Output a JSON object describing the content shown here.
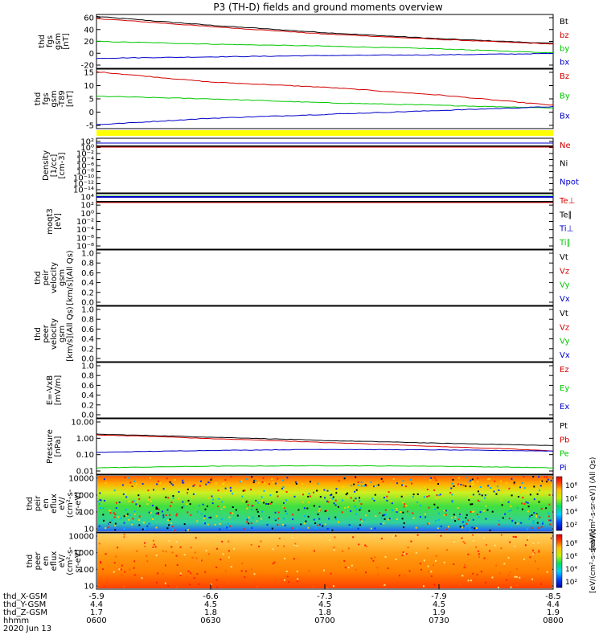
{
  "title": "P3 (TH-D) fields and ground moments overview",
  "colors": {
    "black": "#000000",
    "red": "#d40000",
    "green": "#00c800",
    "blue": "#0000c8",
    "yellow": "#ffff00"
  },
  "chart_data": [
    {
      "id": "fgs",
      "type": "line",
      "ylabel": [
        "thd",
        "fgs",
        "gsm",
        "[nT]"
      ],
      "yticks": [
        "60",
        "40",
        "20",
        "0",
        "-20"
      ],
      "ylim": [
        -20,
        60
      ],
      "x_time": [
        "0600",
        "0630",
        "0700",
        "0730",
        "0800"
      ],
      "series": [
        {
          "name": "Bt",
          "color": "black",
          "x": [
            0,
            0.25,
            0.5,
            0.75,
            1
          ],
          "y": [
            57,
            44,
            33,
            24,
            17
          ]
        },
        {
          "name": "bz",
          "color": "red",
          "x": [
            0,
            0.25,
            0.5,
            0.75,
            1
          ],
          "y": [
            54,
            42,
            31,
            23,
            16
          ]
        },
        {
          "name": "by",
          "color": "green",
          "x": [
            0,
            0.25,
            0.5,
            0.75,
            1
          ],
          "y": [
            20,
            16,
            13,
            9,
            3
          ]
        },
        {
          "name": "bx",
          "color": "blue",
          "x": [
            0,
            0.25,
            0.5,
            0.75,
            1
          ],
          "y": [
            -5,
            -3,
            -1,
            0,
            2
          ]
        }
      ]
    },
    {
      "id": "fgs-ssl",
      "type": "line",
      "ylabel": [
        "thd",
        "fgs",
        "gsm",
        "-T89",
        "[nT]"
      ],
      "yticks": [
        "15",
        "10",
        "5",
        "0",
        "-5"
      ],
      "ylim": [
        -7,
        16
      ],
      "x_time": [
        "0600",
        "0630",
        "0700",
        "0730",
        "0800"
      ],
      "series": [
        {
          "name": "Bz",
          "color": "red",
          "x": [
            0,
            0.25,
            0.5,
            0.75,
            1
          ],
          "y": [
            15,
            11,
            9,
            6,
            2
          ]
        },
        {
          "name": "By",
          "color": "green",
          "x": [
            0,
            0.25,
            0.5,
            0.75,
            1
          ],
          "y": [
            5.5,
            4.5,
            3,
            2,
            1
          ]
        },
        {
          "name": "Bx",
          "color": "blue",
          "x": [
            0,
            0.25,
            0.5,
            0.75,
            1
          ],
          "y": [
            -5.5,
            -3,
            -1.5,
            0,
            1.5
          ]
        }
      ]
    },
    {
      "id": "density",
      "type": "line",
      "ylabel": [
        "Density",
        "[1/cc]",
        "[cm-3]"
      ],
      "yticks": [
        "10²",
        "10⁰",
        "10⁻²",
        "10⁻⁴",
        "10⁻⁶",
        "10⁻⁸",
        "10⁻¹⁰",
        "10⁻¹²",
        "10⁻¹⁴"
      ],
      "log": true,
      "series_labels": [
        {
          "name": "Ne",
          "color": "red"
        },
        {
          "name": "Ni",
          "color": "black"
        },
        {
          "name": "Npot",
          "color": "blue"
        }
      ]
    },
    {
      "id": "temperature",
      "type": "line",
      "ylabel": [
        "moqt3",
        "[eV]"
      ],
      "yticks": [
        "10⁴",
        "10²",
        "10⁰",
        "10⁻²",
        "10⁻⁴",
        "10⁻⁶",
        "10⁻⁸"
      ],
      "log": true,
      "series_labels": [
        {
          "name": "Te⊥",
          "color": "red"
        },
        {
          "name": "Te∥",
          "color": "black"
        },
        {
          "name": "Ti⊥",
          "color": "blue"
        },
        {
          "name": "Ti∥",
          "color": "green"
        }
      ]
    },
    {
      "id": "peir-velocity",
      "type": "line",
      "ylabel": [
        "thd",
        "peir",
        "velocity",
        "gsm",
        "[km/s](All Qs)"
      ],
      "yticks": [
        "1.0",
        "0.8",
        "0.6",
        "0.4",
        "0.2",
        "0.0"
      ],
      "ylim": [
        0,
        1
      ],
      "series_labels": [
        {
          "name": "Vt",
          "color": "black"
        },
        {
          "name": "Vz",
          "color": "red"
        },
        {
          "name": "Vy",
          "color": "green"
        },
        {
          "name": "Vx",
          "color": "blue"
        }
      ]
    },
    {
      "id": "peer-velocity",
      "type": "line",
      "ylabel": [
        "thd",
        "peer",
        "velocity",
        "gsm",
        "[km/s](All Qs)"
      ],
      "yticks": [
        "1.0",
        "0.8",
        "0.6",
        "0.4",
        "0.2",
        "0.0"
      ],
      "ylim": [
        0,
        1
      ],
      "series_labels": [
        {
          "name": "Vt",
          "color": "black"
        },
        {
          "name": "Vz",
          "color": "red"
        },
        {
          "name": "Vy",
          "color": "green"
        },
        {
          "name": "Vx",
          "color": "blue"
        }
      ]
    },
    {
      "id": "e-field",
      "type": "line",
      "ylabel": [
        "E=-VxB",
        "[mV/m]"
      ],
      "yticks": [
        "1.0",
        "0.8",
        "0.6",
        "0.4",
        "0.2",
        "0.0"
      ],
      "ylim": [
        0,
        1
      ],
      "series_labels": [
        {
          "name": "Ez",
          "color": "red"
        },
        {
          "name": "Ey",
          "color": "green"
        },
        {
          "name": "Ex",
          "color": "blue"
        }
      ]
    },
    {
      "id": "pressure",
      "type": "line",
      "ylabel": [
        "Pressure",
        "[nPa]"
      ],
      "yticks": [
        "10.00",
        "1.00",
        "0.10",
        "0.01"
      ],
      "log": true,
      "ylim": [
        0.005,
        10
      ],
      "series": [
        {
          "name": "Pt",
          "color": "black",
          "x": [
            0,
            0.25,
            0.5,
            0.75,
            1
          ],
          "y": [
            1.2,
            0.8,
            0.5,
            0.35,
            0.25
          ]
        },
        {
          "name": "Pb",
          "color": "red",
          "x": [
            0,
            0.25,
            0.5,
            0.75,
            1
          ],
          "y": [
            1.1,
            0.65,
            0.38,
            0.22,
            0.12
          ]
        },
        {
          "name": "Pe",
          "color": "green",
          "x": [
            0,
            0.25,
            0.5,
            0.75,
            1
          ],
          "y": [
            0.012,
            0.015,
            0.016,
            0.015,
            0.012
          ]
        },
        {
          "name": "Pi",
          "color": "blue",
          "x": [
            0,
            0.25,
            0.5,
            0.75,
            1
          ],
          "y": [
            0.1,
            0.13,
            0.15,
            0.14,
            0.12
          ]
        }
      ]
    },
    {
      "id": "peir-en-eflux",
      "type": "heatmap",
      "ylabel": [
        "thd",
        "peir",
        "en",
        "eflux",
        "eV/",
        "(cm²-s-",
        "sr-eV)"
      ],
      "yticks": [
        "10000",
        "1000",
        "100",
        "10"
      ],
      "colorbar_label": "[eV/(cm²-s-sr-eV)] (All Qs)",
      "colorbar_ticks": [
        "10⁸",
        "10⁶",
        "10⁴",
        "10²"
      ]
    },
    {
      "id": "peer-en-eflux",
      "type": "heatmap",
      "ylabel": [
        "thd",
        "peer",
        "en",
        "eflux",
        "eV/",
        "(cm²-s-",
        "sr-eV)"
      ],
      "yticks": [
        "10000",
        "1000",
        "100",
        "10"
      ],
      "colorbar_label": "[eV/(cm²-s-sr-eV)]",
      "colorbar_ticks": [
        "10⁸",
        "10⁶",
        "10⁴",
        "10²"
      ]
    }
  ],
  "x_axis": {
    "row_labels": [
      "thd_X-GSM",
      "thd_Y-GSM",
      "thd_Z-GSM",
      "hhmm",
      "2020 Jun 13"
    ],
    "ticks": [
      {
        "x_gsm": "-5.9",
        "y_gsm": "4.4",
        "z_gsm": "1.7",
        "hhmm": "0600"
      },
      {
        "x_gsm": "-6.6",
        "y_gsm": "4.5",
        "z_gsm": "1.8",
        "hhmm": "0630"
      },
      {
        "x_gsm": "-7.3",
        "y_gsm": "4.5",
        "z_gsm": "1.8",
        "hhmm": "0700"
      },
      {
        "x_gsm": "-7.9",
        "y_gsm": "4.5",
        "z_gsm": "1.9",
        "hhmm": "0730"
      },
      {
        "x_gsm": "-8.5",
        "y_gsm": "4.4",
        "z_gsm": "1.9",
        "hhmm": "0800"
      }
    ]
  }
}
